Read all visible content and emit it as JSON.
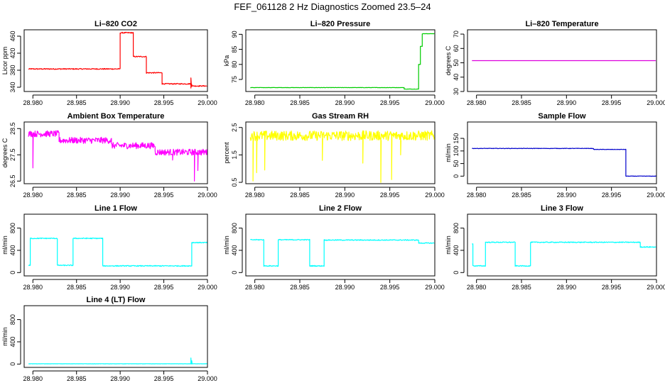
{
  "page": {
    "title": "FEF_061128  2 Hz Diagnostics Zoomed 23.5–24"
  },
  "chart_data": [
    {
      "type": "line",
      "title": "Li–820 CO2",
      "ylabel": "Licor ppm",
      "color": "#ff0000",
      "xlim": [
        28.979,
        29.0
      ],
      "ylim": [
        330,
        475
      ],
      "xticks": [
        28.98,
        28.985,
        28.99,
        28.995,
        29.0
      ],
      "xtick_labels": [
        "28.980",
        "28.985",
        "28.990",
        "28.995",
        "29.000"
      ],
      "yticks": [
        340,
        380,
        420,
        460
      ],
      "ytick_labels": [
        "340",
        "380",
        "420",
        "460"
      ],
      "series": [
        {
          "name": "Licor ppm",
          "noise": 1.2,
          "segments": [
            [
              28.9795,
              28.99,
              383
            ],
            [
              28.99,
              28.9915,
              468
            ],
            [
              28.9915,
              28.993,
              412
            ],
            [
              28.993,
              28.9948,
              374
            ],
            [
              28.9948,
              28.9982,
              348
            ],
            [
              28.9982,
              29.0,
              343
            ]
          ],
          "spikes": [
            [
              28.9981,
              362
            ],
            [
              28.9981,
              338
            ]
          ]
        }
      ]
    },
    {
      "type": "line",
      "title": "Li–820 Pressure",
      "ylabel": "kPa",
      "color": "#00cc00",
      "xlim": [
        28.979,
        29.0
      ],
      "ylim": [
        71,
        91.5
      ],
      "xticks": [
        28.98,
        28.985,
        28.99,
        28.995,
        29.0
      ],
      "xtick_labels": [
        "28.980",
        "28.985",
        "28.990",
        "28.995",
        "29.000"
      ],
      "yticks": [
        75,
        80,
        85,
        90
      ],
      "ytick_labels": [
        "75",
        "80",
        "85",
        "90"
      ],
      "series": [
        {
          "name": "kPa",
          "noise": 0.05,
          "segments": [
            [
              28.9795,
              28.9966,
              72.3
            ],
            [
              28.9966,
              28.9982,
              71.8
            ],
            [
              28.9982,
              28.9984,
              80
            ],
            [
              28.9984,
              28.9986,
              86
            ],
            [
              28.9986,
              29.0,
              90.2
            ]
          ],
          "spikes": []
        }
      ]
    },
    {
      "type": "line",
      "title": "Li–820 Temperature",
      "ylabel": "degrees C",
      "color": "#dd00dd",
      "xlim": [
        28.979,
        29.0
      ],
      "ylim": [
        30,
        73
      ],
      "xticks": [
        28.98,
        28.985,
        28.99,
        28.995,
        29.0
      ],
      "xtick_labels": [
        "28.980",
        "28.985",
        "28.990",
        "28.995",
        "29.000"
      ],
      "yticks": [
        30,
        40,
        50,
        60,
        70
      ],
      "ytick_labels": [
        "30",
        "40",
        "50",
        "60",
        "70"
      ],
      "series": [
        {
          "name": "degrees C",
          "noise": 0,
          "segments": [
            [
              28.9795,
              29.0,
              51.5
            ]
          ],
          "spikes": []
        }
      ]
    },
    {
      "type": "line",
      "title": "Ambient Box Temperature",
      "ylabel": "degrees C",
      "color": "#ff00ff",
      "xlim": [
        28.979,
        29.0
      ],
      "ylim": [
        26.4,
        28.75
      ],
      "xticks": [
        28.98,
        28.985,
        28.99,
        28.995,
        29.0
      ],
      "xtick_labels": [
        "28.980",
        "28.985",
        "28.990",
        "28.995",
        "29.000"
      ],
      "yticks": [
        26.5,
        27.5,
        28.5
      ],
      "ytick_labels": [
        "26.5",
        "27.5",
        "28.5"
      ],
      "series": [
        {
          "name": "degrees C",
          "noise": 0.12,
          "segments": [
            [
              28.9795,
              28.983,
              28.3
            ],
            [
              28.983,
              28.989,
              28.05
            ],
            [
              28.989,
              28.994,
              27.85
            ],
            [
              28.994,
              29.0,
              27.6
            ]
          ],
          "spikes": [
            [
              28.98,
              27.0
            ],
            [
              28.9985,
              26.5
            ],
            [
              28.9989,
              26.9
            ],
            [
              28.996,
              27.3
            ]
          ]
        }
      ]
    },
    {
      "type": "line",
      "title": "Gas Stream RH",
      "ylabel": "percent",
      "color": "#ffff00",
      "xlim": [
        28.979,
        29.0
      ],
      "ylim": [
        0.45,
        2.7
      ],
      "xticks": [
        28.98,
        28.985,
        28.99,
        28.995,
        29.0
      ],
      "xtick_labels": [
        "28.980",
        "28.985",
        "28.990",
        "28.995",
        "29.000"
      ],
      "yticks": [
        0.5,
        1.5,
        2.5
      ],
      "ytick_labels": [
        "0.5",
        "1.5",
        "2.5"
      ],
      "series": [
        {
          "name": "percent",
          "noise": 0.18,
          "segments": [
            [
              28.9795,
              29.0,
              2.2
            ]
          ],
          "spikes": [
            [
              28.9798,
              0.55
            ],
            [
              28.9802,
              0.85
            ],
            [
              28.9811,
              0.95
            ],
            [
              28.994,
              0.5
            ],
            [
              28.9952,
              0.6
            ],
            [
              28.9875,
              1.3
            ],
            [
              28.992,
              1.2
            ],
            [
              28.9962,
              1.5
            ]
          ]
        }
      ]
    },
    {
      "type": "line",
      "title": "Sample Flow",
      "ylabel": "ml/min",
      "color": "#0000cc",
      "xlim": [
        28.979,
        29.0
      ],
      "ylim": [
        -30,
        215
      ],
      "xticks": [
        28.98,
        28.985,
        28.99,
        28.995,
        29.0
      ],
      "xtick_labels": [
        "28.980",
        "28.985",
        "28.990",
        "28.995",
        "29.000"
      ],
      "yticks": [
        0,
        50,
        100,
        150
      ],
      "ytick_labels": [
        "0",
        "50",
        "100",
        "150"
      ],
      "series": [
        {
          "name": "ml/min",
          "noise": 0.8,
          "segments": [
            [
              28.9795,
              28.993,
              110
            ],
            [
              28.993,
              28.9966,
              106
            ],
            [
              28.9966,
              29.0,
              0
            ]
          ],
          "spikes": []
        }
      ]
    },
    {
      "type": "line",
      "title": "Line 1 Flow",
      "ylabel": "ml/min",
      "color": "#00ffff",
      "xlim": [
        28.979,
        29.0
      ],
      "ylim": [
        -60,
        1050
      ],
      "xticks": [
        28.98,
        28.985,
        28.99,
        28.995,
        29.0
      ],
      "xtick_labels": [
        "28.980",
        "28.985",
        "28.990",
        "28.995",
        "29.000"
      ],
      "yticks": [
        0,
        400,
        800
      ],
      "ytick_labels": [
        "0",
        "400",
        "800"
      ],
      "series": [
        {
          "name": "ml/min",
          "noise": 8,
          "segments": [
            [
              28.9795,
              28.9797,
              130
            ],
            [
              28.9797,
              28.9828,
              615
            ],
            [
              28.9828,
              28.9846,
              130
            ],
            [
              28.9846,
              28.988,
              615
            ],
            [
              28.988,
              28.9982,
              120
            ],
            [
              28.9982,
              29.0,
              540
            ]
          ],
          "spikes": []
        }
      ]
    },
    {
      "type": "line",
      "title": "Line 2 Flow",
      "ylabel": "ml/min",
      "color": "#00ffff",
      "xlim": [
        28.979,
        29.0
      ],
      "ylim": [
        -60,
        1050
      ],
      "xticks": [
        28.98,
        28.985,
        28.99,
        28.995,
        29.0
      ],
      "xtick_labels": [
        "28.980",
        "28.985",
        "28.990",
        "28.995",
        "29.000"
      ],
      "yticks": [
        0,
        400,
        800
      ],
      "ytick_labels": [
        "0",
        "400",
        "800"
      ],
      "series": [
        {
          "name": "ml/min",
          "noise": 8,
          "segments": [
            [
              28.9795,
              28.981,
              590
            ],
            [
              28.981,
              28.9826,
              120
            ],
            [
              28.9826,
              28.9861,
              590
            ],
            [
              28.9861,
              28.9877,
              120
            ],
            [
              28.9877,
              28.9982,
              585
            ],
            [
              28.9982,
              29.0,
              530
            ]
          ],
          "spikes": []
        }
      ]
    },
    {
      "type": "line",
      "title": "Line 3 Flow",
      "ylabel": "ml/min",
      "color": "#00ffff",
      "xlim": [
        28.979,
        29.0
      ],
      "ylim": [
        -60,
        1050
      ],
      "xticks": [
        28.98,
        28.985,
        28.99,
        28.995,
        29.0
      ],
      "xtick_labels": [
        "28.980",
        "28.985",
        "28.990",
        "28.995",
        "29.000"
      ],
      "yticks": [
        0,
        400,
        800
      ],
      "ytick_labels": [
        "0",
        "400",
        "800"
      ],
      "series": [
        {
          "name": "ml/min",
          "noise": 8,
          "segments": [
            [
              28.9795,
              28.9796,
              520
            ],
            [
              28.9796,
              28.981,
              120
            ],
            [
              28.981,
              28.9843,
              545
            ],
            [
              28.9843,
              28.986,
              120
            ],
            [
              28.986,
              28.9982,
              545
            ],
            [
              28.9982,
              29.0,
              460
            ]
          ],
          "spikes": []
        }
      ]
    },
    {
      "type": "line",
      "title": "Line 4 (LT) Flow",
      "ylabel": "ml/min",
      "color": "#00ffff",
      "xlim": [
        28.979,
        29.0
      ],
      "ylim": [
        -60,
        1050
      ],
      "xticks": [
        28.98,
        28.985,
        28.99,
        28.995,
        29.0
      ],
      "xtick_labels": [
        "28.980",
        "28.985",
        "28.990",
        "28.995",
        "29.000"
      ],
      "yticks": [
        0,
        400,
        800
      ],
      "ytick_labels": [
        "0",
        "400",
        "800"
      ],
      "series": [
        {
          "name": "ml/min",
          "noise": 2,
          "segments": [
            [
              28.9795,
              29.0,
              5
            ]
          ],
          "spikes": [
            [
              28.9981,
              110
            ],
            [
              28.9982,
              60
            ]
          ]
        }
      ]
    }
  ]
}
